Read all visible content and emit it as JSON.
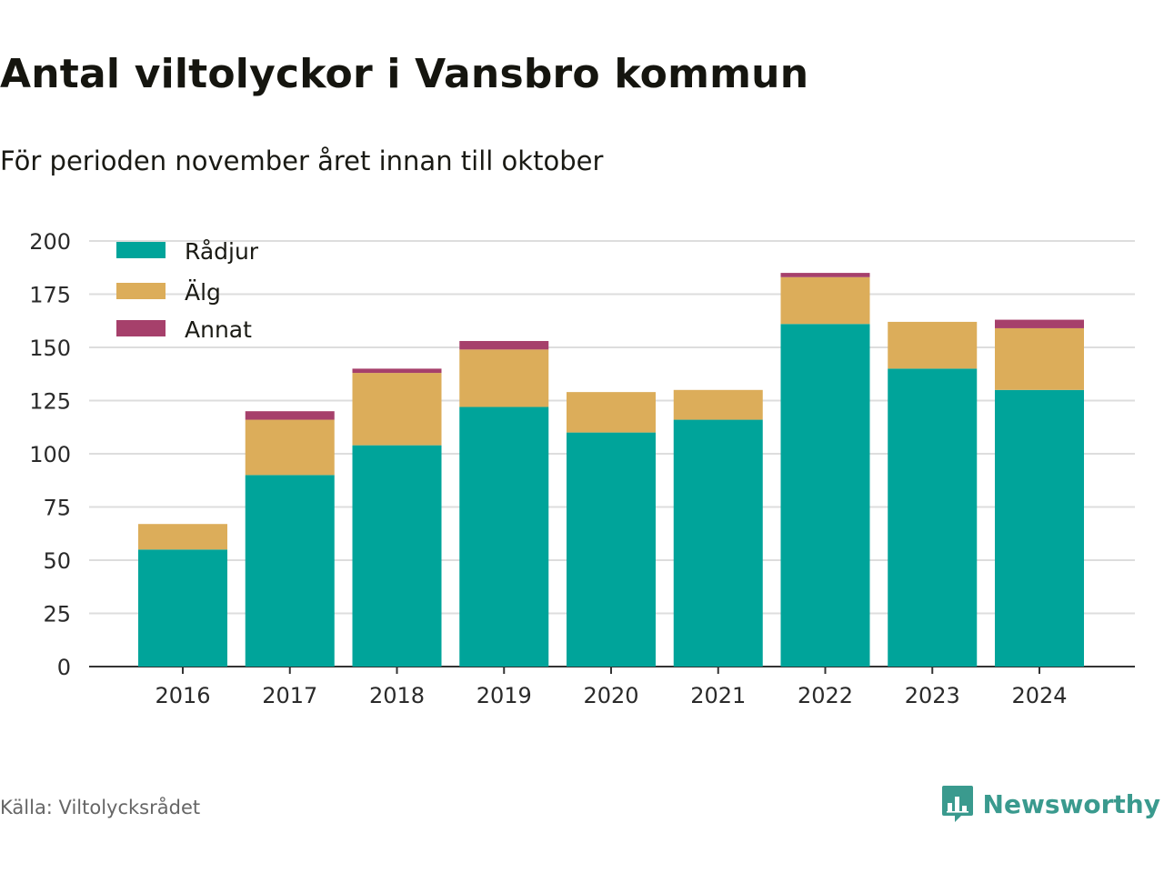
{
  "header": {
    "title": "Antal viltolyckor i Vansbro kommun",
    "subtitle": "För perioden november året innan till oktober"
  },
  "footer": {
    "source": "Källa: Viltolycksrådet",
    "brand": "Newsworthy",
    "brand_icon": "bar-chart-speech-bubble-icon"
  },
  "colors": {
    "radjur": "#00a49a",
    "alg": "#dcad5a",
    "annat": "#a6406b",
    "grid": "#dddddd",
    "axis": "#333333"
  },
  "chart_data": {
    "type": "bar",
    "stacked": true,
    "title": "Antal viltolyckor i Vansbro kommun",
    "subtitle": "För perioden november året innan till oktober",
    "categories": [
      "2016",
      "2017",
      "2018",
      "2019",
      "2020",
      "2021",
      "2022",
      "2023",
      "2024"
    ],
    "series": [
      {
        "name": "Rådjur",
        "values": [
          55,
          90,
          104,
          122,
          110,
          116,
          161,
          140,
          130
        ]
      },
      {
        "name": "Älg",
        "values": [
          12,
          26,
          34,
          27,
          19,
          14,
          22,
          22,
          29
        ]
      },
      {
        "name": "Annat",
        "values": [
          0,
          4,
          2,
          4,
          0,
          0,
          2,
          0,
          4
        ]
      }
    ],
    "ylim": [
      0,
      200
    ],
    "yticks": [
      "0",
      "25",
      "50",
      "75",
      "100",
      "125",
      "150",
      "175",
      "200"
    ],
    "grid": true,
    "legend_position": "top-left"
  }
}
